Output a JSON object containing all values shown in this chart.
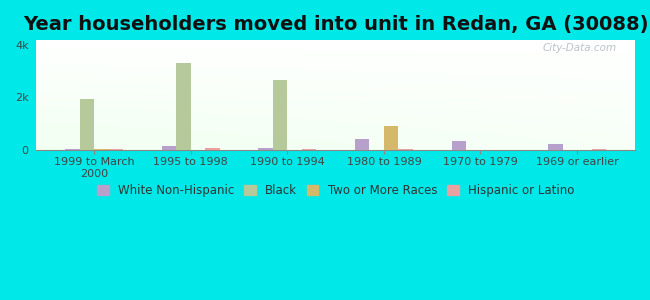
{
  "title": "Year householders moved into unit in Redan, GA (30088)",
  "categories": [
    "1999 to March\n2000",
    "1995 to 1998",
    "1990 to 1994",
    "1980 to 1989",
    "1970 to 1979",
    "1969 or earlier"
  ],
  "series": {
    "White Non-Hispanic": [
      30,
      150,
      80,
      420,
      330,
      220
    ],
    "Black": [
      1950,
      3300,
      2650,
      0,
      0,
      0
    ],
    "Two or More Races": [
      55,
      0,
      0,
      900,
      0,
      0
    ],
    "Hispanic or Latino": [
      25,
      80,
      25,
      30,
      15,
      20
    ]
  },
  "colors": {
    "White Non-Hispanic": "#b8a0cc",
    "Black": "#b5c99a",
    "Two or More Races": "#d4b96a",
    "Hispanic or Latino": "#e8a0a0"
  },
  "ylim": [
    0,
    4200
  ],
  "ytick_vals": [
    0,
    2000,
    4000
  ],
  "ytick_labels": [
    "0",
    "2k",
    "4k"
  ],
  "background_color": "#00e8e8",
  "title_fontsize": 14,
  "legend_fontsize": 8.5,
  "tick_fontsize": 8,
  "bar_width": 0.15,
  "watermark": "City-Data.com"
}
